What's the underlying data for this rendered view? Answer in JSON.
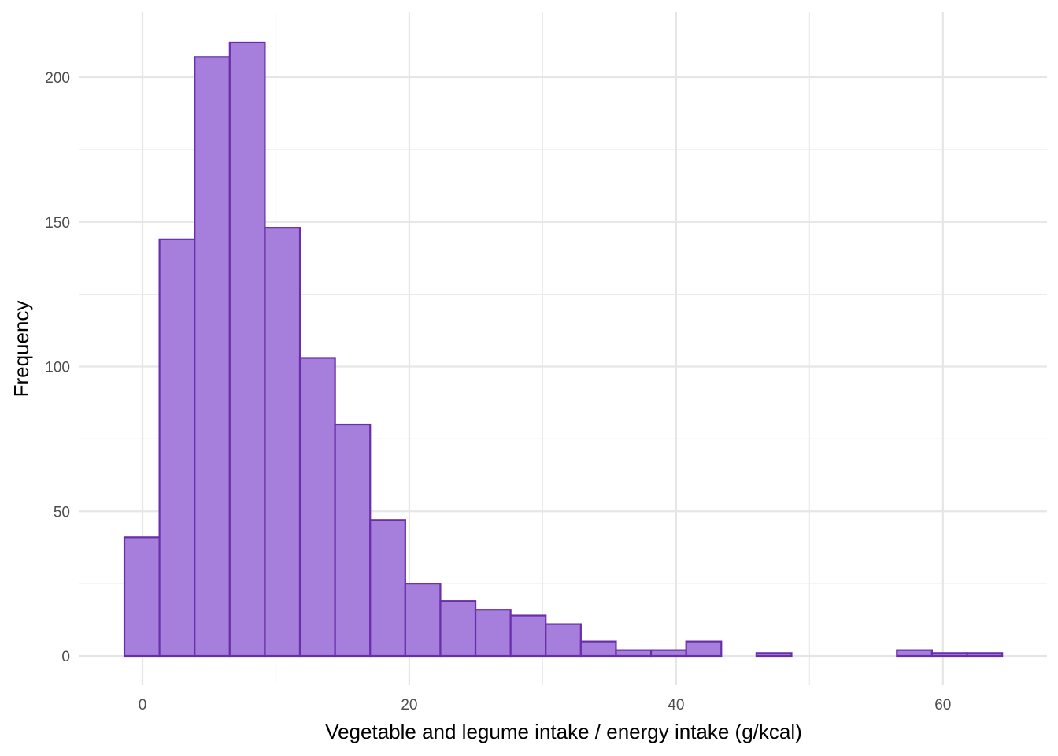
{
  "chart_data": {
    "type": "bar",
    "subtype": "histogram",
    "title": "",
    "xlabel": "Vegetable and legume intake / energy intake (g/kcal)",
    "ylabel": "Frequency",
    "bin_start": -1.357,
    "bin_width": 2.632,
    "values": [
      41,
      144,
      207,
      212,
      148,
      103,
      80,
      47,
      25,
      19,
      16,
      14,
      11,
      5,
      2,
      2,
      5,
      0,
      1,
      0,
      0,
      0,
      2,
      1,
      1
    ],
    "xlim": [
      -4.78,
      67.8
    ],
    "ylim": [
      -10.07,
      222.6
    ],
    "xticks": [
      0,
      20,
      40,
      60
    ],
    "xtick_labels": [
      "0",
      "20",
      "40",
      "60"
    ],
    "yticks": [
      0,
      50,
      100,
      150,
      200
    ],
    "ytick_labels": [
      "0",
      "50",
      "100",
      "150",
      "200"
    ],
    "xminor": [
      10,
      30,
      50
    ],
    "yminor": [
      25,
      75,
      125,
      175
    ],
    "grid": true,
    "fill_color": "#a67edc",
    "edge_color": "#6a2fa8"
  }
}
